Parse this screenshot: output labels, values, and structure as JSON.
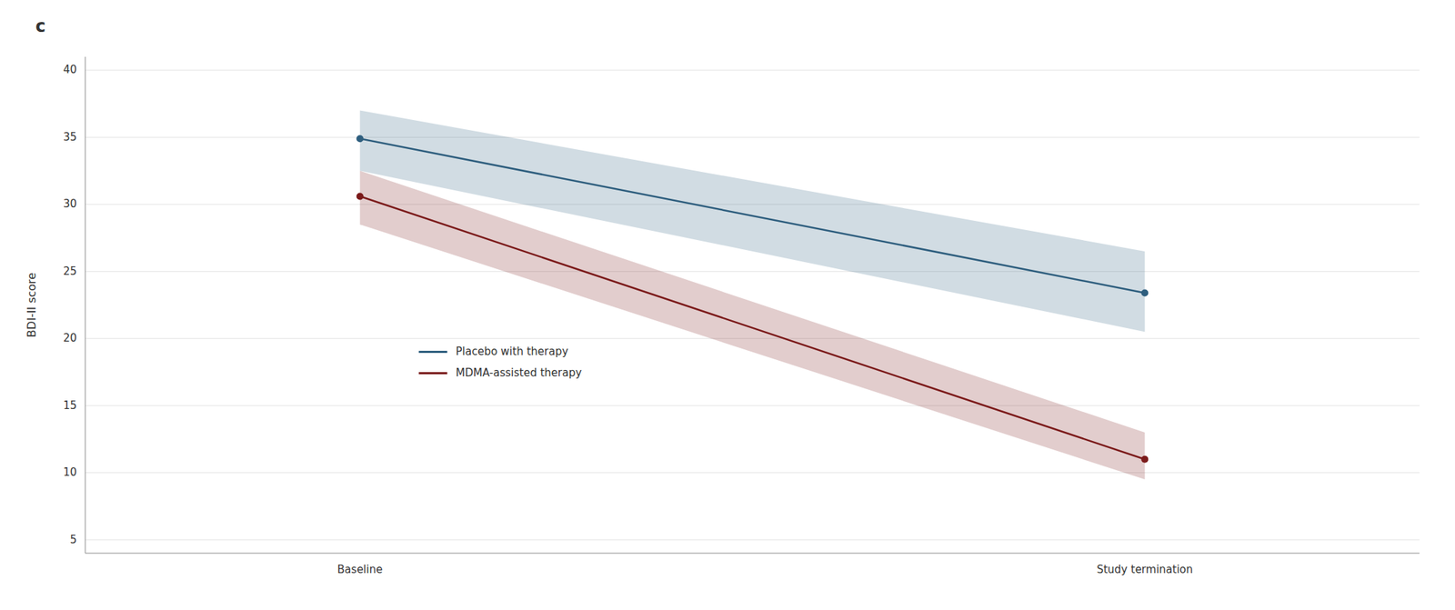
{
  "chart_data": {
    "type": "line",
    "title": "c",
    "y_label": "BDI-II score",
    "categories": [
      "Baseline",
      "Study termination"
    ],
    "series": [
      {
        "name": "Placebo with therapy",
        "color": "#2E5E7E",
        "marker": "circle",
        "values": [
          34.9,
          23.4
        ],
        "ci_lower": [
          32.5,
          20.5
        ],
        "ci_upper": [
          37.0,
          26.5
        ]
      },
      {
        "name": "MDMA-assisted therapy",
        "color": "#7B1A1A",
        "marker": "circle",
        "values": [
          30.6,
          11.0
        ],
        "ci_lower": [
          28.5,
          9.5
        ],
        "ci_upper": [
          32.5,
          13.0
        ]
      }
    ],
    "ylim": [
      4,
      41
    ],
    "yticks": [
      5,
      10,
      15,
      20,
      25,
      30,
      35,
      40
    ],
    "grid": true,
    "legend": "left"
  }
}
